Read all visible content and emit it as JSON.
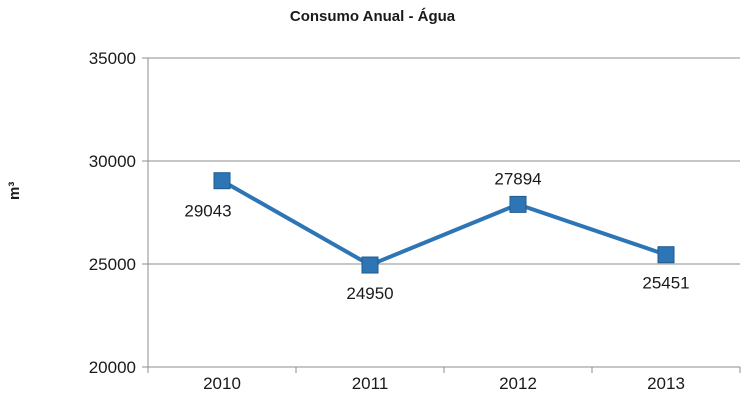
{
  "chart_data": {
    "type": "line",
    "title": "Consumo Anual - Água",
    "ylabel": "m³",
    "xlabel": "",
    "categories": [
      "2010",
      "2011",
      "2012",
      "2013"
    ],
    "series": [
      {
        "values": [
          29043,
          24950,
          27894,
          25451
        ],
        "color": "#2e75b6",
        "marker": "square"
      }
    ],
    "ylim": [
      20000,
      35000
    ],
    "yticks": [
      20000,
      25000,
      30000,
      35000
    ],
    "data_labels": [
      "29043",
      "24950",
      "27894",
      "25451"
    ],
    "grid": "horizontal",
    "legend": "none"
  }
}
